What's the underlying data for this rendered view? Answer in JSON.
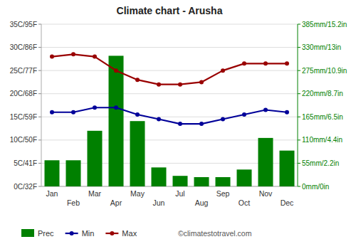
{
  "chart_data": {
    "type": "bar",
    "title": "Climate chart - Arusha",
    "categories": [
      "Jan",
      "Feb",
      "Mar",
      "Apr",
      "May",
      "Jun",
      "Jul",
      "Aug",
      "Sep",
      "Oct",
      "Nov",
      "Dec"
    ],
    "series": [
      {
        "name": "Prec",
        "type": "bar",
        "axis": "y2",
        "color": "#008000",
        "values": [
          62,
          62,
          132,
          310,
          155,
          45,
          25,
          22,
          22,
          40,
          115,
          85
        ]
      },
      {
        "name": "Min",
        "type": "line",
        "color": "#000099",
        "marker": "circle",
        "values": [
          16,
          16,
          17,
          17,
          15.5,
          14.5,
          13.5,
          13.5,
          14.5,
          15.5,
          16.5,
          16
        ]
      },
      {
        "name": "Max",
        "type": "line",
        "color": "#990000",
        "marker": "circle",
        "values": [
          28,
          28.5,
          28,
          25,
          23,
          22,
          22,
          22.5,
          25,
          26.5,
          26.5,
          26.5
        ]
      }
    ],
    "ylim": [
      0,
      35
    ],
    "yticks": [
      {
        "value": 0,
        "label": "0C/32F"
      },
      {
        "value": 5,
        "label": "5C/41F"
      },
      {
        "value": 10,
        "label": "10C/50F"
      },
      {
        "value": 15,
        "label": "15C/59F"
      },
      {
        "value": 20,
        "label": "20C/68F"
      },
      {
        "value": 25,
        "label": "25C/77F"
      },
      {
        "value": 30,
        "label": "30C/86F"
      },
      {
        "value": 35,
        "label": "35C/95F"
      }
    ],
    "y2lim": [
      0,
      385
    ],
    "y2ticks": [
      {
        "value": 0,
        "label": "0mm/0in"
      },
      {
        "value": 55,
        "label": "55mm/2.2in"
      },
      {
        "value": 110,
        "label": "110mm/4.4in"
      },
      {
        "value": 165,
        "label": "165mm/6.5in"
      },
      {
        "value": 220,
        "label": "220mm/8.7in"
      },
      {
        "value": 275,
        "label": "275mm/10.9in"
      },
      {
        "value": 330,
        "label": "330mm/13in"
      },
      {
        "value": 385,
        "label": "385mm/15.2in"
      }
    ],
    "grid": true,
    "legend": "bottom",
    "annotations": [
      "©climatestotravel.com"
    ]
  }
}
